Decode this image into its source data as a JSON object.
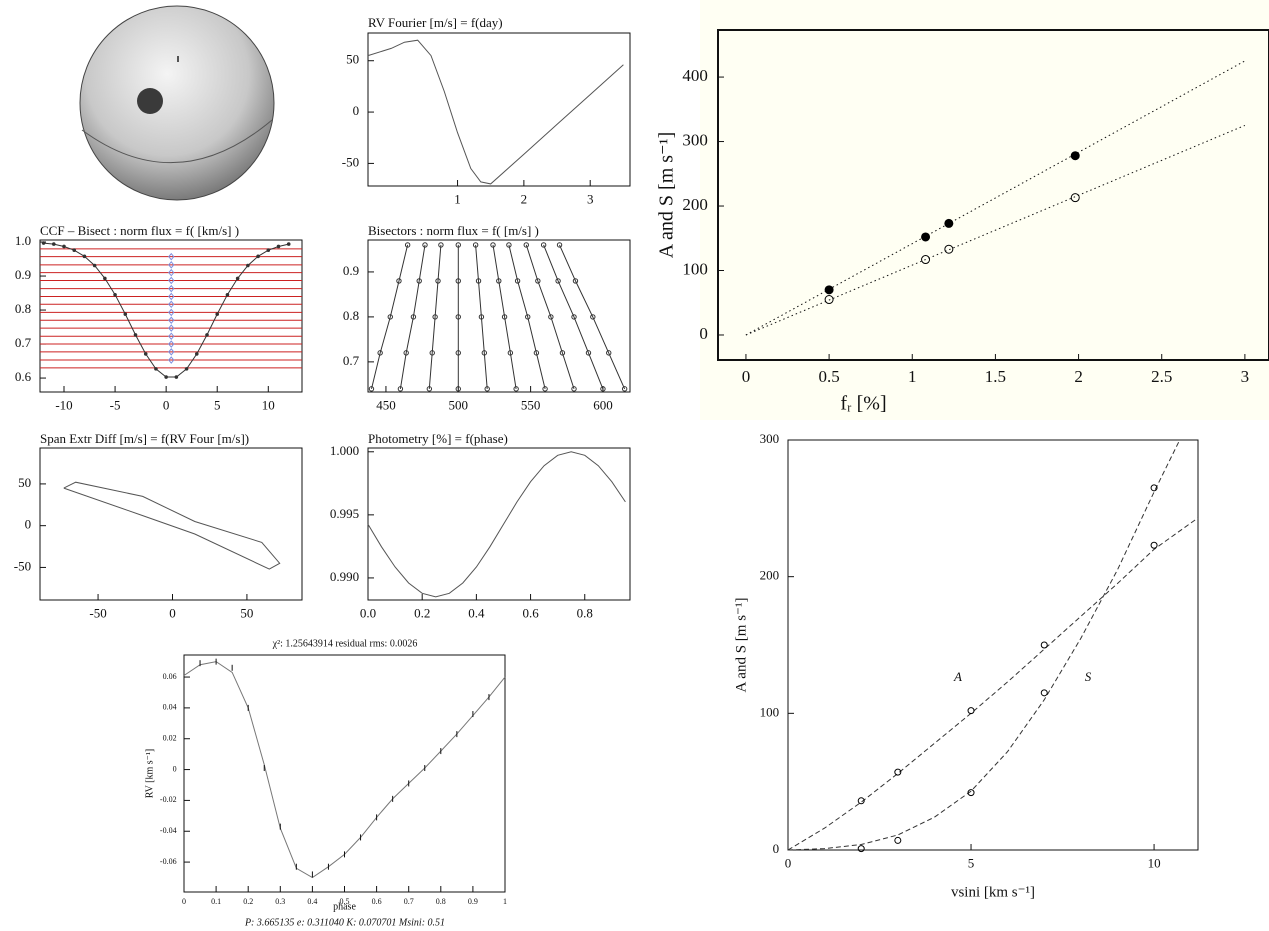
{
  "chart_data": [
    {
      "type": "line",
      "title": "RV Fourier [m/s] = f(day)",
      "xlim": [
        -0.35,
        3.6
      ],
      "ylim": [
        -72,
        77
      ],
      "xticks": [
        1,
        2,
        3
      ],
      "yticks": [
        -50,
        0,
        50
      ],
      "series": [
        {
          "color": "#555555",
          "line": "solid",
          "x": [
            -0.35,
            0,
            0.2,
            0.4,
            0.6,
            0.8,
            1,
            1.2,
            1.35,
            1.5,
            2,
            2.5,
            3,
            3.5
          ],
          "values": [
            55,
            62,
            68,
            70,
            55,
            20,
            -20,
            -55,
            -68,
            -70,
            -41,
            -12,
            17,
            46
          ]
        }
      ]
    },
    {
      "type": "line",
      "title": "CCF – Bisect : norm flux = f( [km/s] )",
      "xlim": [
        -12.35,
        13.3
      ],
      "ylim": [
        0.559,
        1.006
      ],
      "xticks": [
        -10,
        -5,
        0,
        5,
        10
      ],
      "yticks": [
        0.6,
        0.7,
        0.8,
        0.9,
        {
          "value": 1,
          "label": "1.0"
        }
      ],
      "hlines": {
        "color": "#cc2222",
        "values": [
          0.63,
          0.653,
          0.677,
          0.7,
          0.723,
          0.747,
          0.77,
          0.793,
          0.817,
          0.84,
          0.863,
          0.887,
          0.91,
          0.933,
          0.957,
          0.98
        ]
      },
      "series": [
        {
          "color": "#333333",
          "line": "solid",
          "marker": "dot",
          "x": [
            -12,
            -11,
            -10,
            -9,
            -8,
            -7,
            -6,
            -5,
            -4,
            -3,
            -2,
            -1,
            0,
            1,
            2,
            3,
            4,
            5,
            6,
            7,
            8,
            9,
            10,
            11,
            12
          ],
          "values": [
            0.997,
            0.994,
            0.987,
            0.976,
            0.958,
            0.931,
            0.893,
            0.845,
            0.788,
            0.727,
            0.671,
            0.627,
            0.603,
            0.603,
            0.627,
            0.671,
            0.727,
            0.788,
            0.845,
            0.893,
            0.931,
            0.958,
            0.976,
            0.987,
            0.994
          ]
        },
        {
          "color": "#7d8fe0",
          "marker": "diamond",
          "x": [
            0.5,
            0.5,
            0.5,
            0.5,
            0.5,
            0.5,
            0.5,
            0.5,
            0.5,
            0.5,
            0.5,
            0.5,
            0.5,
            0.5
          ],
          "values": [
            0.653,
            0.677,
            0.7,
            0.723,
            0.747,
            0.77,
            0.793,
            0.817,
            0.84,
            0.863,
            0.887,
            0.91,
            0.933,
            0.957
          ]
        }
      ]
    },
    {
      "type": "line",
      "title": "Bisectors : norm flux = f( [m/s] )",
      "xlim": [
        437.6,
        618.7
      ],
      "ylim": [
        0.633,
        0.971
      ],
      "xticks": [
        450,
        500,
        550,
        600
      ],
      "yticks": [
        0.7,
        0.8,
        0.9
      ],
      "series": [
        {
          "color": "#333333",
          "line": "solid",
          "marker": "open-circle",
          "x": [
            440,
            446,
            453,
            459,
            465
          ],
          "values": [
            0.64,
            0.72,
            0.8,
            0.88,
            0.96
          ]
        },
        {
          "color": "#333333",
          "line": "solid",
          "marker": "open-circle",
          "x": [
            460,
            464,
            469,
            473,
            477
          ],
          "values": [
            0.64,
            0.72,
            0.8,
            0.88,
            0.96
          ]
        },
        {
          "color": "#333333",
          "line": "solid",
          "marker": "open-circle",
          "x": [
            480,
            482,
            484,
            486,
            488
          ],
          "values": [
            0.64,
            0.72,
            0.8,
            0.88,
            0.96
          ]
        },
        {
          "color": "#333333",
          "line": "solid",
          "marker": "open-circle",
          "x": [
            500,
            500,
            500,
            500,
            500
          ],
          "values": [
            0.64,
            0.72,
            0.8,
            0.88,
            0.96
          ]
        },
        {
          "color": "#333333",
          "line": "solid",
          "marker": "open-circle",
          "x": [
            520,
            518,
            516,
            514,
            512
          ],
          "values": [
            0.64,
            0.72,
            0.8,
            0.88,
            0.96
          ]
        },
        {
          "color": "#333333",
          "line": "solid",
          "marker": "open-circle",
          "x": [
            540,
            536,
            532,
            528,
            524
          ],
          "values": [
            0.64,
            0.72,
            0.8,
            0.88,
            0.96
          ]
        },
        {
          "color": "#333333",
          "line": "solid",
          "marker": "open-circle",
          "x": [
            560,
            554,
            548,
            541,
            535
          ],
          "values": [
            0.64,
            0.72,
            0.8,
            0.88,
            0.96
          ]
        },
        {
          "color": "#333333",
          "line": "solid",
          "marker": "open-circle",
          "x": [
            580,
            572,
            564,
            555,
            547
          ],
          "values": [
            0.64,
            0.72,
            0.8,
            0.88,
            0.96
          ]
        },
        {
          "color": "#333333",
          "line": "solid",
          "marker": "open-circle",
          "x": [
            600,
            590,
            580,
            569,
            559
          ],
          "values": [
            0.64,
            0.72,
            0.8,
            0.88,
            0.96
          ]
        },
        {
          "color": "#333333",
          "line": "solid",
          "marker": "open-circle",
          "x": [
            615,
            604,
            593,
            581,
            570
          ],
          "values": [
            0.64,
            0.72,
            0.8,
            0.88,
            0.96
          ]
        }
      ]
    },
    {
      "type": "line",
      "title": "Span Extr Diff [m/s] = f(RV Four [m/s])",
      "xlim": [
        -89,
        87
      ],
      "ylim": [
        -89,
        93
      ],
      "xticks": [
        -50,
        0,
        50
      ],
      "yticks": [
        -50,
        0,
        50
      ],
      "series": [
        {
          "color": "#555555",
          "line": "solid",
          "x": [
            -73,
            -65,
            -20,
            15,
            60,
            72,
            65,
            15,
            -20,
            -73
          ],
          "values": [
            45,
            52,
            35,
            5,
            -20,
            -45,
            -52,
            -10,
            12,
            45
          ]
        }
      ]
    },
    {
      "type": "line",
      "title": "Photometry [%] = f(phase)",
      "xlim": [
        0,
        0.967
      ],
      "ylim": [
        0.98825,
        1.0003
      ],
      "xticks": [
        {
          "value": 0,
          "label": "0.0"
        },
        0.2,
        0.4,
        0.6,
        0.8
      ],
      "yticks": [
        {
          "value": 0.99,
          "label": "0.990"
        },
        0.995,
        {
          "value": 1,
          "label": "1.000"
        }
      ],
      "series": [
        {
          "color": "#555555",
          "line": "solid",
          "x": [
            0,
            0.05,
            0.1,
            0.15,
            0.2,
            0.25,
            0.3,
            0.35,
            0.4,
            0.45,
            0.5,
            0.55,
            0.6,
            0.65,
            0.7,
            0.75,
            0.8,
            0.85,
            0.9,
            0.95
          ],
          "values": [
            0.99425,
            0.99247,
            0.99087,
            0.9896,
            0.98878,
            0.9885,
            0.98878,
            0.9896,
            0.99087,
            0.99247,
            0.99425,
            0.99603,
            0.99763,
            0.9989,
            0.99972,
            1,
            0.99972,
            0.9989,
            0.99763,
            0.99603
          ]
        }
      ]
    },
    {
      "type": "scatter",
      "title": "χ²: 1.25643914   residual rms: 0.0026",
      "caption": "P: 3.665135   e: 0.311040   K: 0.070701   Msini: 0.51",
      "x_label": "phase",
      "y_label": "RV [km s⁻¹]",
      "xlim": [
        0,
        1
      ],
      "ylim": [
        -0.0794,
        0.0743
      ],
      "xticks": [
        0,
        0.1,
        0.2,
        0.3,
        0.4,
        0.5,
        0.6,
        0.7,
        0.8,
        0.9,
        1
      ],
      "yticks": [
        -0.06,
        -0.04,
        -0.02,
        0,
        0.02,
        0.04,
        0.06
      ],
      "series": [
        {
          "color": "#777777",
          "line": "solid",
          "x": [
            0,
            0.05,
            0.1,
            0.15,
            0.2,
            0.25,
            0.3,
            0.35,
            0.4,
            0.45,
            0.5,
            0.55,
            0.6,
            0.65,
            0.7,
            0.75,
            0.8,
            0.85,
            0.9,
            0.95,
            1
          ],
          "values": [
            0.061,
            0.068,
            0.07,
            0.063,
            0.04,
            0.003,
            -0.038,
            -0.064,
            -0.07,
            -0.063,
            -0.055,
            -0.044,
            -0.031,
            -0.019,
            -0.009,
            0.001,
            0.012,
            0.023,
            0.035,
            0.047,
            0.06
          ]
        },
        {
          "color": "#111111",
          "marker": "dash",
          "x": [
            0.05,
            0.1,
            0.15,
            0.2,
            0.25,
            0.3,
            0.35,
            0.4,
            0.45,
            0.5,
            0.55,
            0.6,
            0.65,
            0.7,
            0.75,
            0.8,
            0.85,
            0.9,
            0.95
          ],
          "values": [
            0.069,
            0.07,
            0.066,
            0.04,
            0.001,
            -0.037,
            -0.063,
            -0.068,
            -0.063,
            -0.055,
            -0.044,
            -0.031,
            -0.019,
            -0.009,
            0.001,
            0.012,
            0.023,
            0.036,
            0.047
          ]
        }
      ]
    },
    {
      "type": "scatter",
      "x_label": "fᵣ [%]",
      "y_label": "A and S [m s⁻¹]",
      "xlim": [
        -0.168,
        3.145
      ],
      "ylim": [
        -38.8,
        473
      ],
      "xticks": [
        0,
        0.5,
        1,
        1.5,
        2,
        2.5,
        3
      ],
      "yticks": [
        0,
        100,
        200,
        300,
        400
      ],
      "series": [
        {
          "color": "#111111",
          "line": "dotted",
          "x": [
            0,
            3
          ],
          "values": [
            0,
            425
          ]
        },
        {
          "color": "#111111",
          "line": "dotted",
          "x": [
            0,
            3
          ],
          "values": [
            0,
            325
          ]
        },
        {
          "color": "#000000",
          "marker": "filled-circle",
          "x": [
            0.5,
            1.08,
            1.22,
            1.98
          ],
          "values": [
            70,
            152,
            173,
            278
          ]
        },
        {
          "color": "#000000",
          "marker": "open-circle",
          "x": [
            0.5,
            1.08,
            1.22,
            1.98
          ],
          "values": [
            55,
            117,
            133,
            213
          ]
        }
      ]
    },
    {
      "type": "scatter",
      "x_label": "vsini [km s⁻¹]",
      "y_label": "A and S [m s⁻¹]",
      "xlim": [
        0,
        11.2
      ],
      "ylim": [
        0,
        300
      ],
      "xticks": [
        0,
        5,
        10
      ],
      "yticks": [
        0,
        100,
        200,
        300
      ],
      "series": [
        {
          "name": "A",
          "color": "#333333",
          "line": "dashed",
          "x": [
            0,
            1,
            2,
            3,
            4,
            5,
            6,
            7,
            8,
            9,
            10,
            11.2
          ],
          "values": [
            0,
            16,
            35,
            56,
            78,
            100,
            123,
            147,
            171,
            195,
            220,
            243
          ]
        },
        {
          "name": "S",
          "color": "#333333",
          "line": "dashed",
          "x": [
            0,
            1,
            2,
            3,
            4,
            5,
            6,
            7,
            8,
            9,
            10,
            10.7
          ],
          "values": [
            0,
            1,
            4,
            11,
            24,
            43,
            72,
            110,
            155,
            205,
            262,
            300
          ]
        },
        {
          "color": "#000000",
          "marker": "open-circle",
          "x": [
            2,
            3,
            5,
            7,
            10
          ],
          "values": [
            36,
            57,
            102,
            150,
            223
          ]
        },
        {
          "color": "#000000",
          "marker": "open-circle",
          "x": [
            2,
            3,
            5,
            7,
            10
          ],
          "values": [
            1,
            7,
            42,
            115,
            265
          ]
        }
      ]
    }
  ]
}
